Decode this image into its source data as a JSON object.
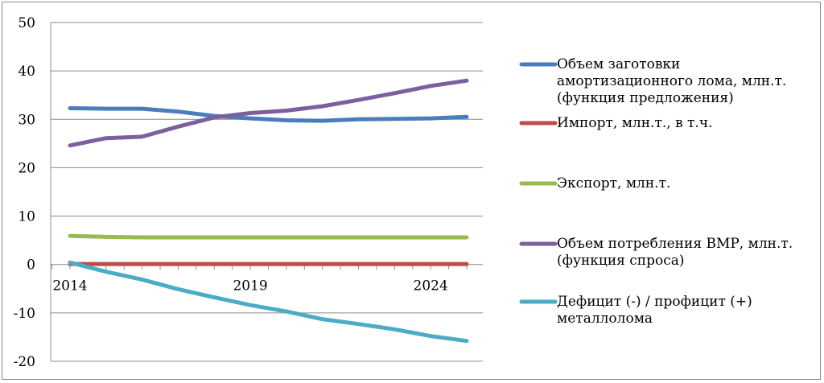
{
  "chart_data": {
    "type": "line",
    "title": "",
    "xlabel": "",
    "ylabel": "",
    "ylim": [
      -20,
      50
    ],
    "yticks": [
      50,
      40,
      30,
      20,
      10,
      0,
      -10,
      -20
    ],
    "xlim": [
      2014,
      2025
    ],
    "xticks": [
      2014,
      2019,
      2024
    ],
    "x": [
      2014,
      2015,
      2016,
      2017,
      2018,
      2019,
      2020,
      2021,
      2022,
      2023,
      2024,
      2025
    ],
    "grid": "horizontal",
    "legend_position": "right",
    "series": [
      {
        "name": "Объем заготовки амортизационного лома, млн.т. (функция предложения)",
        "legend_lines": [
          "Объем заготовки",
          "амортизационного лома, млн.т.",
          "(функция предложения)"
        ],
        "color": "#4a7ebb",
        "values": [
          32.3,
          32.2,
          32.2,
          31.6,
          30.7,
          30.2,
          29.8,
          29.7,
          30.0,
          30.1,
          30.2,
          30.5
        ]
      },
      {
        "name": "Импорт, млн.т., в т.ч.",
        "legend_lines": [
          "Импорт, млн.т., в т.ч."
        ],
        "color": "#be4b48",
        "values": [
          0.1,
          0.1,
          0.1,
          0.1,
          0.1,
          0.1,
          0.1,
          0.1,
          0.1,
          0.1,
          0.1,
          0.1
        ]
      },
      {
        "name": "Экспорт, млн.т.",
        "legend_lines": [
          "Экспорт, млн.т."
        ],
        "color": "#98b954",
        "values": [
          5.9,
          5.7,
          5.6,
          5.6,
          5.6,
          5.6,
          5.6,
          5.6,
          5.6,
          5.6,
          5.6,
          5.6
        ]
      },
      {
        "name": "Объем потребления ВМР, млн.т. (функция спроса)",
        "legend_lines": [
          "Объем потребления ВМР, млн.т.",
          "(функция спроса)"
        ],
        "color": "#7d5fa0",
        "values": [
          24.6,
          26.1,
          26.4,
          28.5,
          30.4,
          31.3,
          31.8,
          32.7,
          34.0,
          35.4,
          36.9,
          38.0
        ]
      },
      {
        "name": "Дефицит (-) / профицит (+) металлолома",
        "legend_lines": [
          "Дефицит (-) / профицит (+)",
          "металлолома"
        ],
        "color": "#4bacc6",
        "values": [
          0.4,
          -1.5,
          -3.1,
          -5.1,
          -6.8,
          -8.4,
          -9.7,
          -11.3,
          -12.3,
          -13.4,
          -14.8,
          -15.8
        ]
      }
    ]
  }
}
